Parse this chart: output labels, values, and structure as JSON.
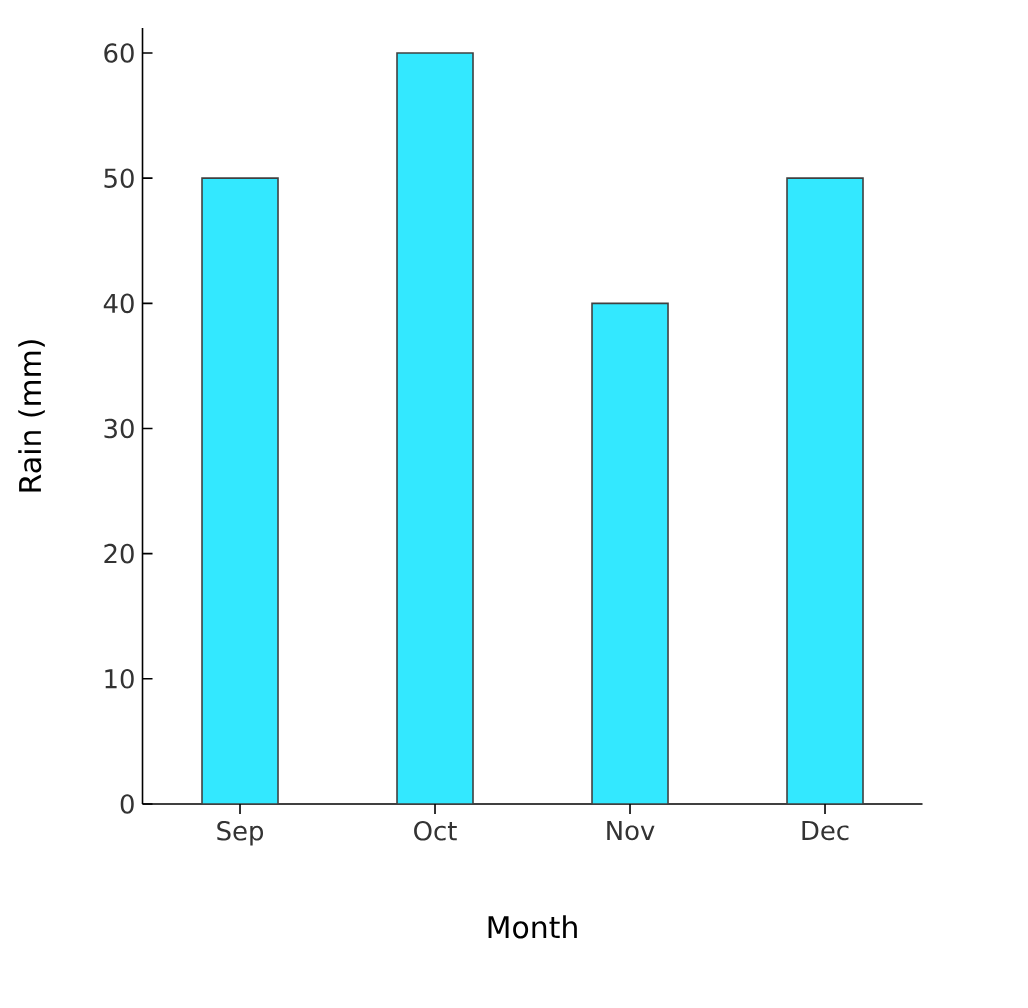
{
  "chart_data": {
    "type": "bar",
    "xlabel": "Month",
    "ylabel": "Rain (mm)",
    "categories": [
      "Sep",
      "Oct",
      "Nov",
      "Dec"
    ],
    "values": [
      50,
      60,
      40,
      50
    ],
    "color": "#33e8ff",
    "ylim": [
      0,
      62
    ],
    "yticks": [
      0,
      10,
      20,
      30,
      40,
      50,
      60
    ],
    "grid": false
  }
}
